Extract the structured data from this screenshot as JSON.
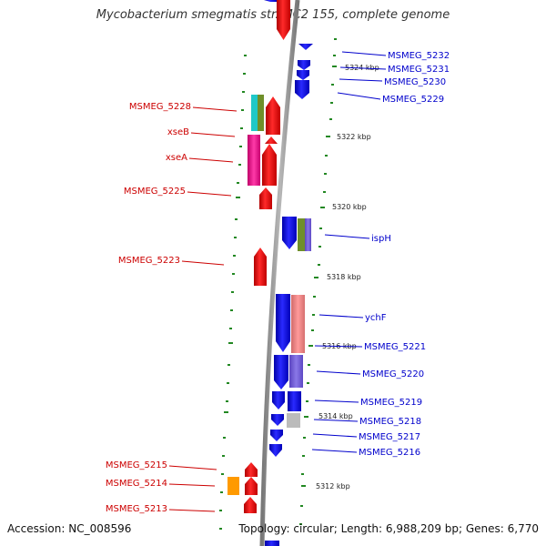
{
  "title": "Mycobacterium smegmatis str. MC2 155, complete genome",
  "footer": {
    "accession": "Accession: NC_008596",
    "topology": "Topology: circular; Length: 6,988,209 bp; Genes: 6,770"
  },
  "colors": {
    "backbone": "#888888",
    "left_label": "#cc0000",
    "right_label": "#0000cc",
    "tick": "#228822"
  },
  "kbp_labels": [
    "5324 kbp",
    "5322 kbp",
    "5320 kbp",
    "5318 kbp",
    "5316 kbp",
    "5314 kbp",
    "5312 kbp"
  ],
  "left_genes": [
    "MSMEG_5228",
    "xseB",
    "xseA",
    "MSMEG_5225",
    "MSMEG_5223",
    "MSMEG_5215",
    "MSMEG_5214",
    "MSMEG_5213"
  ],
  "right_genes": [
    "MSMEG_5232",
    "MSMEG_5231",
    "MSMEG_5230",
    "MSMEG_5229",
    "ispH",
    "ychF",
    "MSMEG_5221",
    "MSMEG_5220",
    "MSMEG_5219",
    "MSMEG_5218",
    "MSMEG_5217",
    "MSMEG_5216"
  ]
}
